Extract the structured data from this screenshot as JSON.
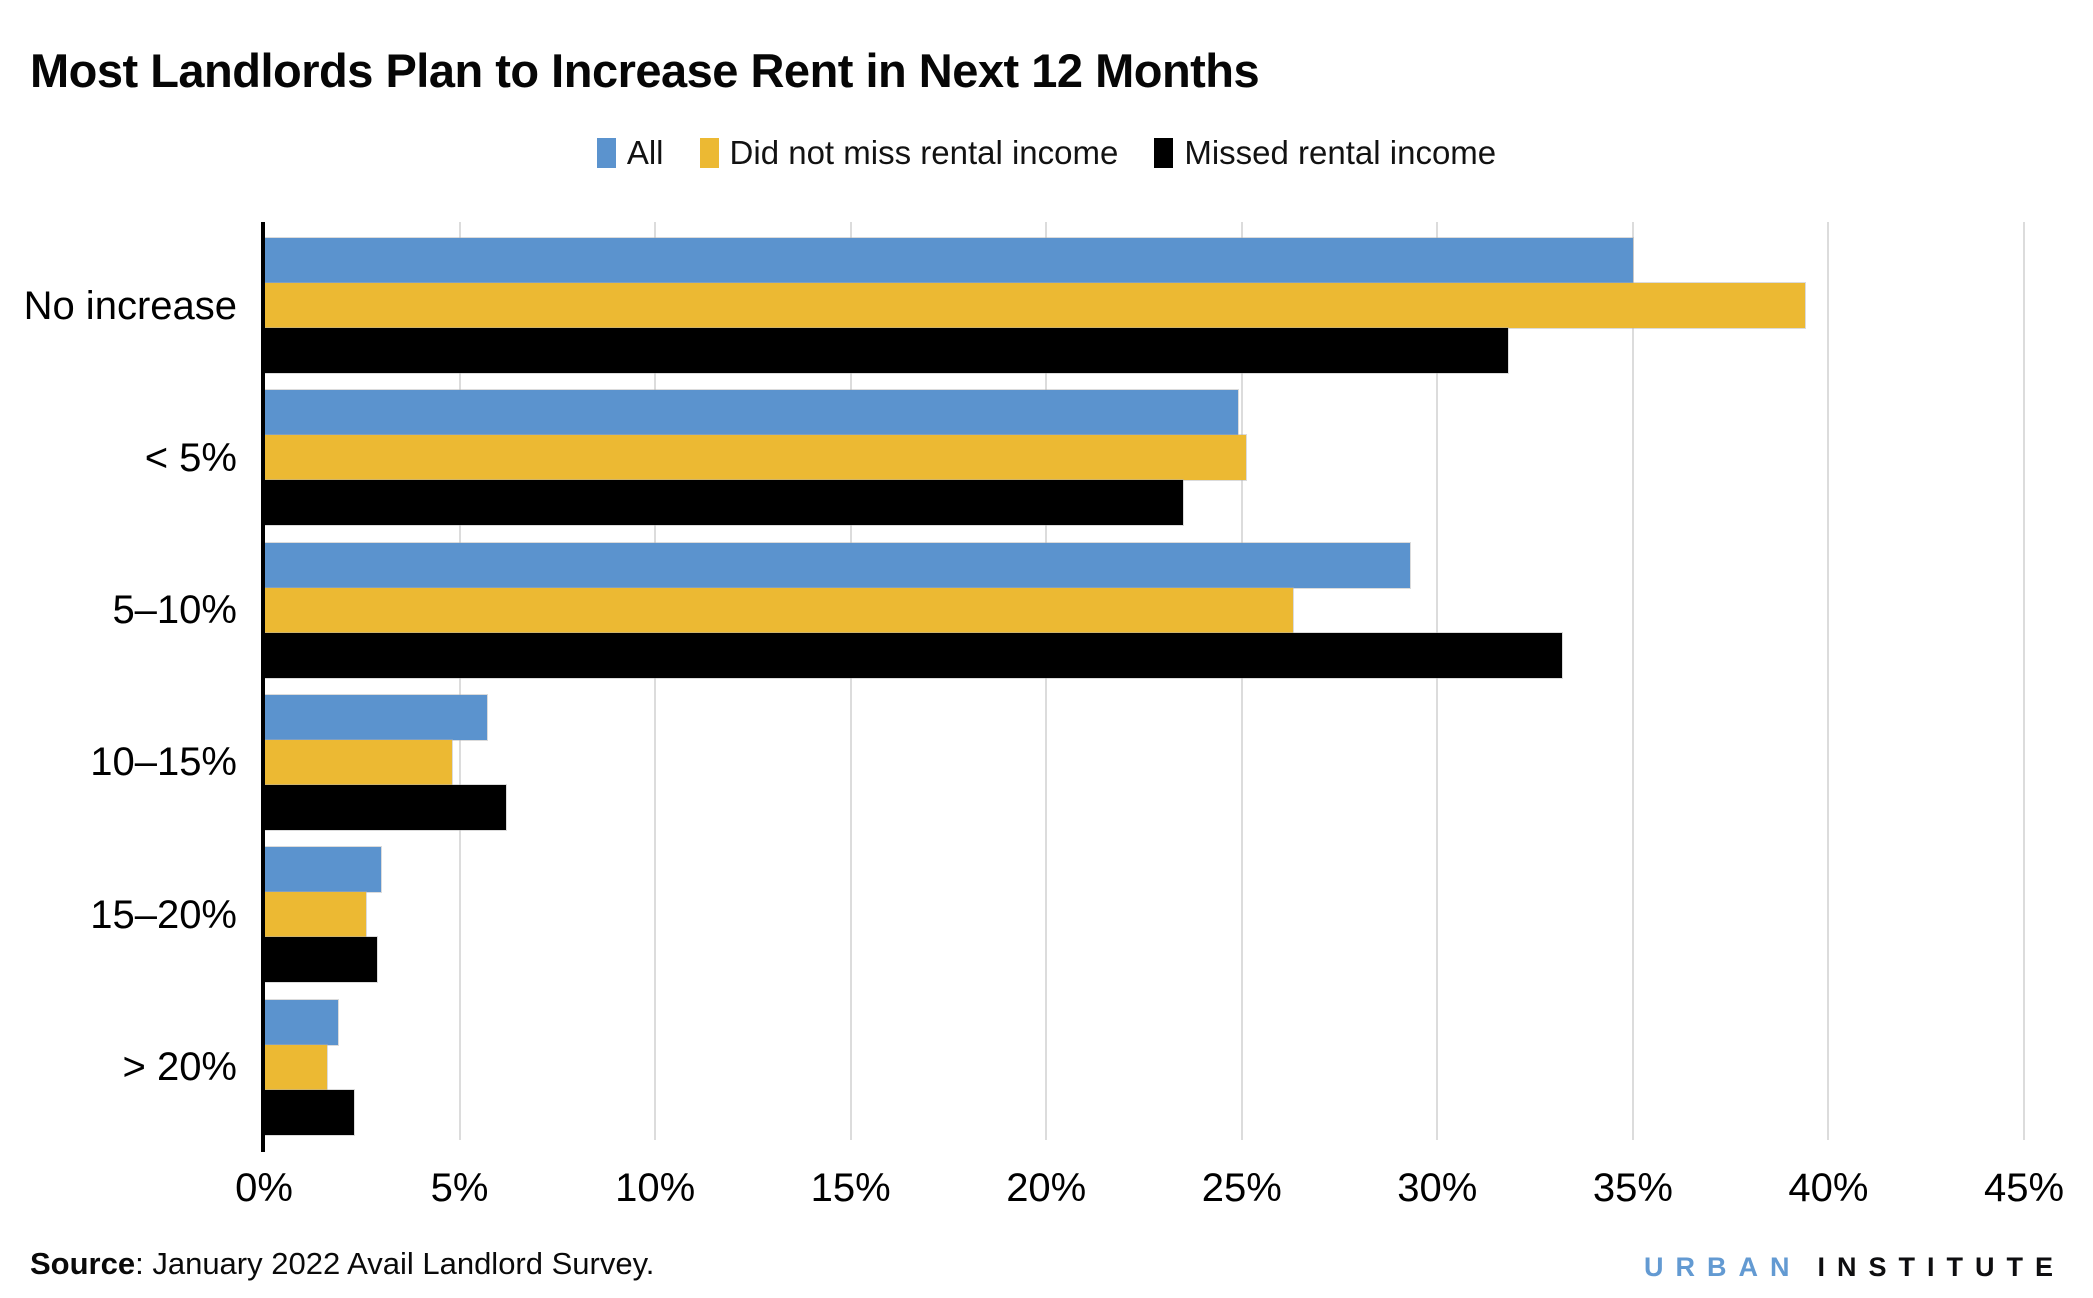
{
  "title": "Most Landlords Plan to Increase Rent in Next 12 Months",
  "colors": {
    "series_all": "#5B93CE",
    "series_did_not_miss": "#ECB933",
    "series_missed": "#000000",
    "gridline": "#DCDCDC",
    "axis": "#000000",
    "logo_blue": "#639AD2"
  },
  "chart_data": {
    "type": "bar",
    "orientation": "horizontal",
    "title": "Most Landlords Plan to Increase Rent in Next 12 Months",
    "categories": [
      "No increase",
      "< 5%",
      "5–10%",
      "10–15%",
      "15–20%",
      "> 20%"
    ],
    "series": [
      {
        "name": "All",
        "color": "#5B93CE",
        "values": [
          35.0,
          24.9,
          29.3,
          5.7,
          3.0,
          1.9
        ]
      },
      {
        "name": "Did not miss rental income",
        "color": "#ECB933",
        "values": [
          39.4,
          25.1,
          26.3,
          4.8,
          2.6,
          1.6
        ]
      },
      {
        "name": "Missed rental income",
        "color": "#000000",
        "values": [
          31.8,
          23.5,
          33.2,
          6.2,
          2.9,
          2.3
        ]
      }
    ],
    "x_axis": {
      "min": 0,
      "max": 45,
      "tick_labels": [
        "0%",
        "5%",
        "10%",
        "15%",
        "20%",
        "25%",
        "30%",
        "35%",
        "40%",
        "45%"
      ],
      "unit": "percent",
      "grid": true
    },
    "legend_position": "top"
  },
  "footer": {
    "source_label": "Source",
    "source_text": ": January 2022 Avail Landlord Survey.",
    "logo_word1": "URBAN",
    "logo_word2": "INSTITUTE"
  }
}
